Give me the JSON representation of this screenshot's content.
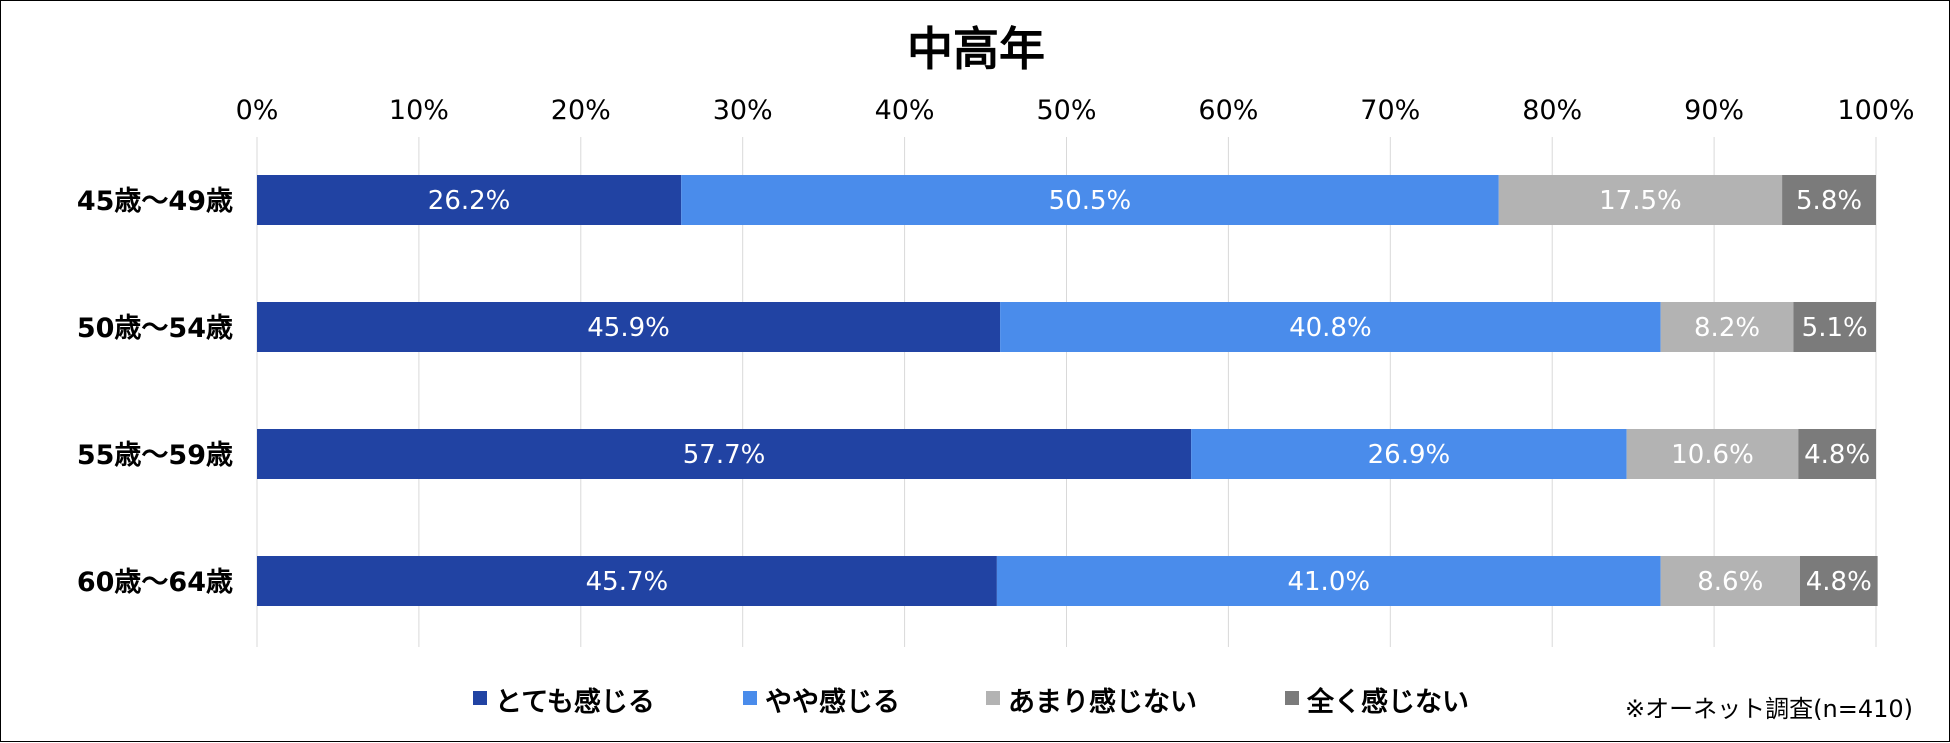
{
  "chart_data": {
    "type": "bar",
    "orientation": "horizontal",
    "stacked": true,
    "title": "中高年",
    "xlim": [
      0,
      100
    ],
    "x_ticks": [
      "0%",
      "10%",
      "20%",
      "30%",
      "40%",
      "50%",
      "60%",
      "70%",
      "80%",
      "90%",
      "100%"
    ],
    "categories": [
      "45歳～49歳",
      "50歳～54歳",
      "55歳～59歳",
      "60歳～64歳"
    ],
    "series": [
      {
        "name": "とても感じる",
        "color": "#2143a3",
        "values": [
          26.2,
          45.9,
          57.7,
          45.7
        ],
        "labels": [
          "26.2%",
          "45.9%",
          "57.7%",
          "45.7%"
        ]
      },
      {
        "name": "やや感じる",
        "color": "#4a8ceb",
        "values": [
          50.5,
          40.8,
          26.9,
          41.0
        ],
        "labels": [
          "50.5%",
          "40.8%",
          "26.9%",
          "41.0%"
        ]
      },
      {
        "name": "あまり感じない",
        "color": "#b3b3b3",
        "values": [
          17.5,
          8.2,
          10.6,
          8.6
        ],
        "labels": [
          "17.5%",
          "8.2%",
          "10.6%",
          "8.6%"
        ]
      },
      {
        "name": "全く感じない",
        "color": "#7b7b7b",
        "values": [
          5.8,
          5.1,
          4.8,
          4.8
        ],
        "labels": [
          "5.8%",
          "5.1%",
          "4.8%",
          "4.8%"
        ]
      }
    ],
    "grid": true,
    "legend": "bottom",
    "note": "※オーネット調査(n=410)"
  }
}
